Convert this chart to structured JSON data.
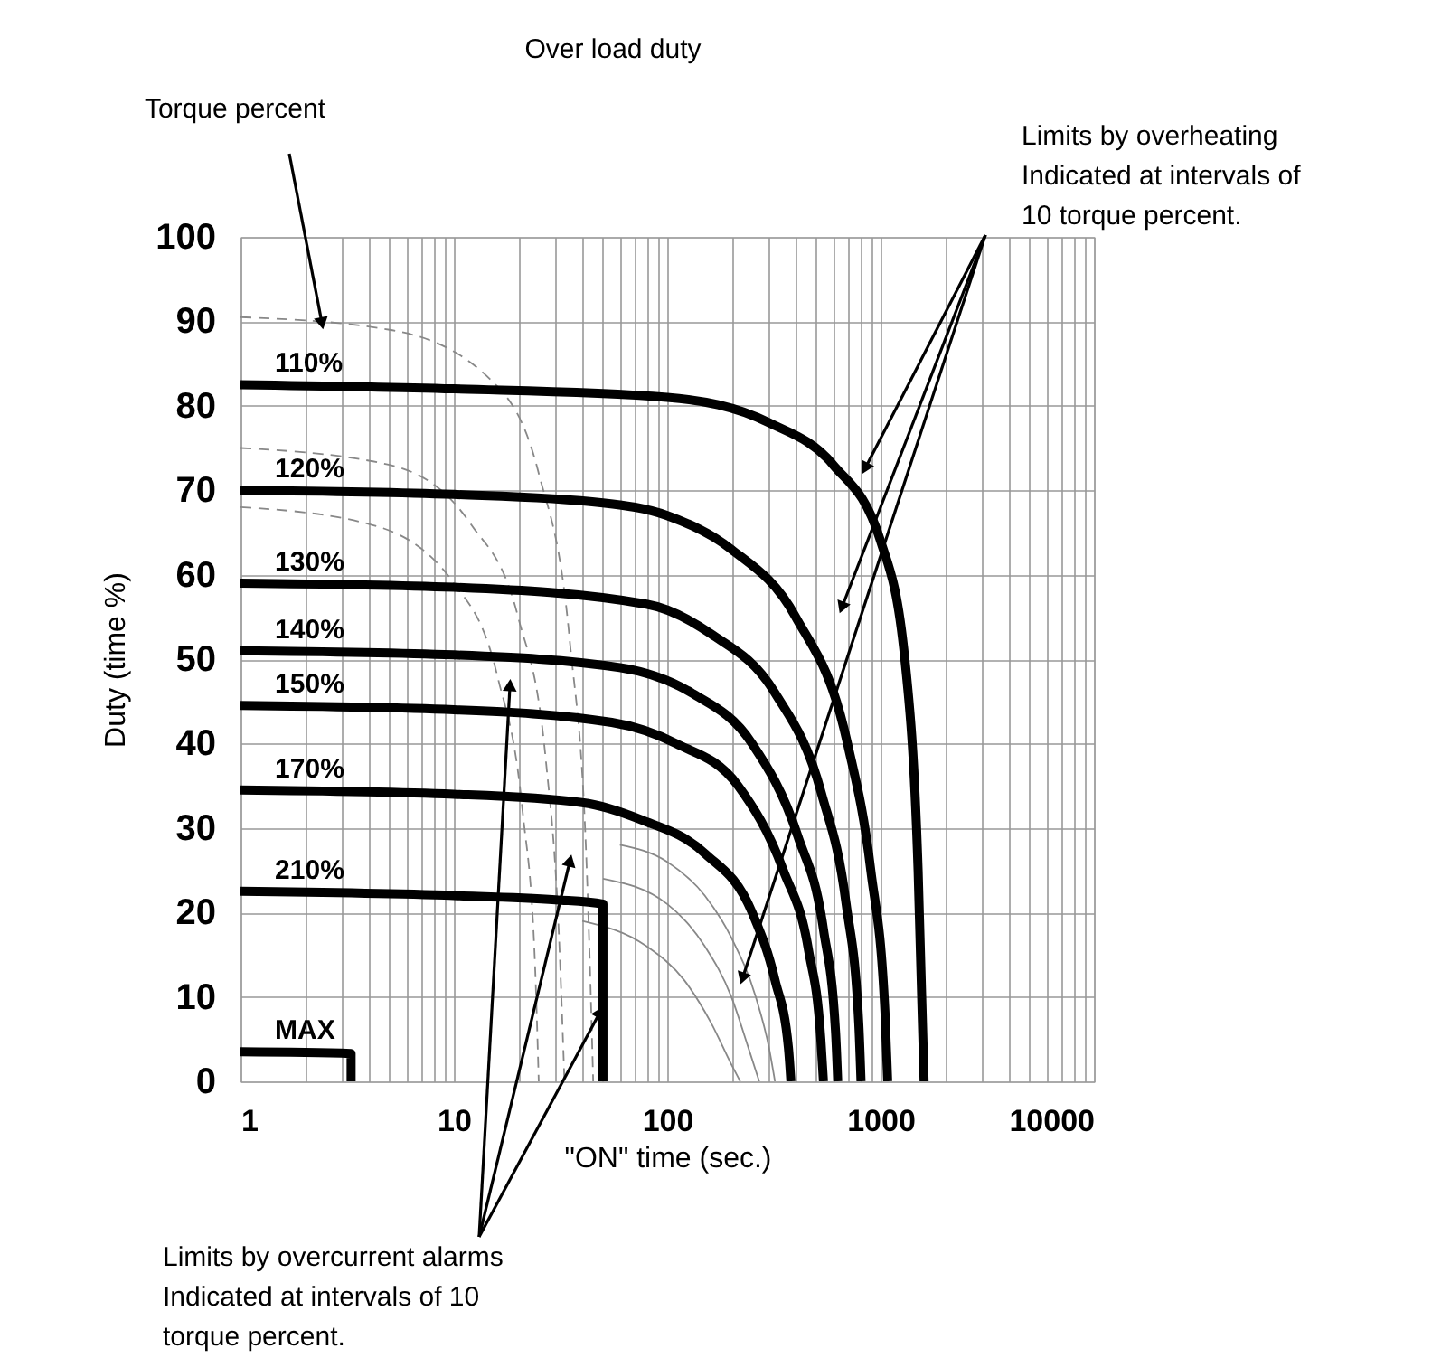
{
  "chart_data": {
    "type": "line",
    "title": "Over load duty",
    "xlabel": "\"ON\" time (sec.)",
    "ylabel": "Duty (time %)",
    "log": "x",
    "grid": true,
    "xlim": [
      1,
      10000
    ],
    "ylim": [
      0,
      100
    ],
    "xticks": [
      1,
      {
        "value": 2,
        "label": null
      },
      {
        "value": 3,
        "label": null
      },
      {
        "value": 4,
        "label": null
      },
      {
        "value": 5,
        "label": null
      },
      {
        "value": 6,
        "label": null
      },
      {
        "value": 7,
        "label": null
      },
      {
        "value": 8,
        "label": null
      },
      {
        "value": 9,
        "label": null
      },
      10,
      {
        "value": 20,
        "label": null
      },
      {
        "value": 30,
        "label": null
      },
      {
        "value": 40,
        "label": null
      },
      {
        "value": 50,
        "label": null
      },
      {
        "value": 60,
        "label": null
      },
      {
        "value": 70,
        "label": null
      },
      {
        "value": 80,
        "label": null
      },
      {
        "value": 90,
        "label": null
      },
      100,
      {
        "value": 200,
        "label": null
      },
      {
        "value": 300,
        "label": null
      },
      {
        "value": 400,
        "label": null
      },
      {
        "value": 500,
        "label": null
      },
      {
        "value": 600,
        "label": null
      },
      {
        "value": 700,
        "label": null
      },
      {
        "value": 800,
        "label": null
      },
      {
        "value": 900,
        "label": null
      },
      1000,
      {
        "value": 2000,
        "label": null
      },
      {
        "value": 3000,
        "label": null
      },
      {
        "value": 4000,
        "label": null
      },
      {
        "value": 5000,
        "label": null
      },
      {
        "value": 6000,
        "label": null
      },
      {
        "value": 7000,
        "label": null
      },
      {
        "value": 8000,
        "label": null
      },
      {
        "value": 9000,
        "label": null
      },
      10000
    ],
    "yticks": [
      0,
      10,
      20,
      30,
      40,
      50,
      60,
      70,
      80,
      90,
      100
    ],
    "series": [
      {
        "color": "#888888",
        "line_style": "dashed",
        "x": [
          1,
          5,
          15,
          25,
          35,
          42,
          45
        ],
        "values": [
          90.5,
          89,
          83,
          72,
          52,
          25,
          0
        ]
      },
      {
        "color": "#888888",
        "line_style": "dashed",
        "x": [
          1,
          5,
          12,
          20,
          27,
          31,
          33
        ],
        "values": [
          75,
          73,
          66,
          55,
          38,
          18,
          0
        ]
      },
      {
        "color": "#888888",
        "line_style": "dashed",
        "x": [
          1,
          4,
          10,
          16,
          21,
          24,
          25
        ],
        "values": [
          68,
          66,
          59,
          48,
          32,
          14,
          0
        ]
      },
      {
        "color": "#888888",
        "line_style": "solid",
        "x": [
          60,
          100,
          150,
          200,
          260,
          300,
          320
        ],
        "values": [
          28,
          26,
          22,
          17,
          10,
          4,
          0
        ]
      },
      {
        "color": "#888888",
        "line_style": "solid",
        "x": [
          50,
          100,
          150,
          200,
          240,
          270
        ],
        "values": [
          24,
          21,
          16,
          10,
          4,
          0
        ]
      },
      {
        "color": "#888888",
        "line_style": "solid",
        "x": [
          40,
          80,
          120,
          160,
          200,
          220
        ],
        "values": [
          19,
          16,
          12,
          7,
          2,
          0
        ]
      },
      {
        "name": "110%",
        "color": "#000000",
        "line_style": "solid",
        "x": [
          1,
          10,
          100,
          300,
          600,
          1000,
          1300,
          1500,
          1600
        ],
        "values": [
          82.5,
          82,
          81,
          78,
          73,
          64,
          50,
          25,
          0
        ]
      },
      {
        "name": "120%",
        "color": "#000000",
        "line_style": "solid",
        "x": [
          1,
          10,
          50,
          100,
          200,
          400,
          700,
          900,
          1050,
          1080
        ],
        "values": [
          70,
          69.5,
          68.5,
          67,
          63,
          55,
          40,
          25,
          8,
          0
        ]
      },
      {
        "name": "130%",
        "color": "#000000",
        "line_style": "solid",
        "x": [
          1,
          10,
          80,
          160,
          320,
          530,
          690,
          790,
          810
        ],
        "values": [
          59,
          58.5,
          56.5,
          53,
          46,
          34,
          21,
          7,
          0
        ]
      },
      {
        "name": "140%",
        "color": "#000000",
        "line_style": "solid",
        "x": [
          1,
          10,
          60,
          130,
          250,
          410,
          540,
          615,
          630
        ],
        "values": [
          51,
          50.5,
          49,
          46,
          40,
          29,
          18,
          6,
          0
        ]
      },
      {
        "name": "150%",
        "color": "#000000",
        "line_style": "solid",
        "x": [
          1,
          10,
          55,
          110,
          215,
          350,
          460,
          525,
          540
        ],
        "values": [
          44.5,
          44,
          42.5,
          40,
          35,
          25,
          15.5,
          5,
          0
        ]
      },
      {
        "name": "170%",
        "color": "#000000",
        "line_style": "solid",
        "x": [
          1,
          10,
          40,
          75,
          150,
          250,
          320,
          370,
          380
        ],
        "values": [
          34.5,
          34,
          33,
          31,
          27,
          20,
          12,
          4,
          0
        ]
      },
      {
        "name": "210%",
        "color": "#000000",
        "line_style": "solid",
        "x": [
          1,
          10,
          30,
          50,
          50
        ],
        "values": [
          22.5,
          22,
          21.5,
          21,
          0
        ]
      },
      {
        "name": "MAX",
        "color": "#000000",
        "line_style": "solid",
        "x": [
          1,
          3.3,
          3.3
        ],
        "values": [
          3.5,
          3.3,
          0
        ]
      }
    ],
    "annotations": [
      {
        "text": "Torque percent",
        "x": 2.4,
        "y": 90
      },
      "Limits by overheating\nIndicated at intervals of\n10 torque percent.",
      {
        "text": "Limits by overcurrent alarms\nIndicated at intervals of 10\ntorque percent.",
        "x": 48,
        "y": 8
      }
    ]
  }
}
